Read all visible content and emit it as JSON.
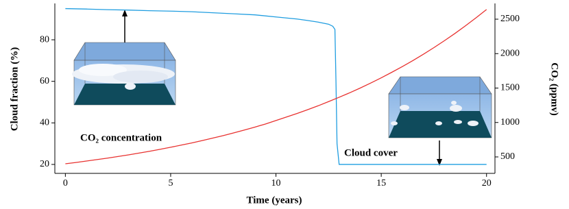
{
  "chart_data": {
    "type": "line",
    "xlabel": "Time (years)",
    "ylabel": "Cloud fraction (%)",
    "y2label": "CO₂ (ppmv)",
    "annotations": [
      "CO₂ concentration",
      "Cloud cover"
    ],
    "xlim": [
      -0.5,
      20.4
    ],
    "xticks": [
      0,
      5,
      10,
      15,
      20
    ],
    "ylim": [
      15.7,
      97.5
    ],
    "yticks": [
      20,
      40,
      60,
      80
    ],
    "y2lim": [
      261,
      2729
    ],
    "y2ticks": [
      500,
      1000,
      1500,
      2000,
      2500
    ],
    "grid": false,
    "series": [
      {
        "name": "Cloud cover",
        "color": "#1f9de0",
        "x": [
          0,
          1,
          2,
          3,
          4,
          5,
          6,
          7,
          8,
          9,
          10,
          11,
          11.5,
          12,
          12.5,
          12.7,
          12.8,
          12.85,
          12.9,
          13,
          14,
          15,
          16,
          17,
          18,
          19,
          20
        ],
        "values": [
          95,
          94.8,
          94.5,
          94.3,
          94,
          93.8,
          93.5,
          93,
          92.5,
          92,
          91,
          90,
          89.3,
          88.5,
          87.5,
          86.5,
          85,
          60,
          30,
          20,
          20,
          20,
          20,
          20,
          20,
          20,
          20
        ]
      },
      {
        "name": "CO₂ concentration",
        "color": "#e8312f",
        "axis": "y2",
        "x": [
          0,
          0.5,
          1,
          1.5,
          2,
          2.5,
          3,
          3.5,
          4,
          4.5,
          5,
          5.5,
          6,
          6.5,
          7,
          7.5,
          8,
          8.5,
          9,
          9.5,
          10,
          10.5,
          11,
          11.5,
          12,
          12.5,
          13,
          13.5,
          14,
          14.5,
          15,
          15.5,
          16,
          16.5,
          17,
          17.5,
          18,
          18.5,
          19,
          19.5,
          20
        ],
        "values": [
          400,
          419,
          440,
          461,
          482,
          506,
          530,
          556,
          582,
          611,
          640,
          671,
          703,
          737,
          773,
          810,
          849,
          890,
          933,
          978,
          1029,
          1079,
          1131,
          1185,
          1242,
          1303,
          1366,
          1431,
          1500,
          1573,
          1649,
          1729,
          1812,
          1899,
          1991,
          2087,
          2188,
          2293,
          2404,
          2520,
          2641
        ]
      }
    ]
  }
}
